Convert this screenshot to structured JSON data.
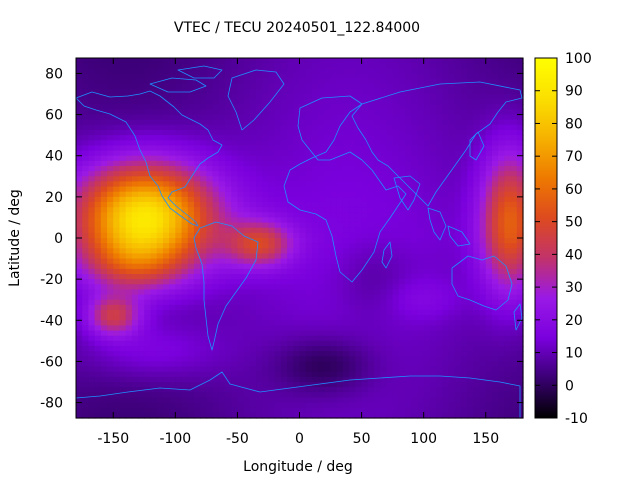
{
  "chart_data": {
    "type": "heatmap",
    "title": "VTEC / TECU 20240501_122.84000",
    "xlabel": "Longitude / deg",
    "ylabel": "Latitude / deg",
    "xlim": [
      -180,
      180
    ],
    "ylim": [
      -87.5,
      87.5
    ],
    "x_ticks": [
      -150,
      -100,
      -50,
      0,
      50,
      100,
      150
    ],
    "y_ticks": [
      -80,
      -60,
      -40,
      -20,
      0,
      20,
      40,
      60,
      80
    ],
    "colorbar": {
      "range": [
        -10,
        100
      ],
      "ticks": [
        -10,
        0,
        10,
        20,
        30,
        40,
        50,
        60,
        70,
        80,
        90,
        100
      ],
      "palette": [
        "#000000",
        "#3a0073",
        "#7a00dd",
        "#9a19e6",
        "#c2336a",
        "#dd4a1f",
        "#ee7a00",
        "#f6b200",
        "#fbe000",
        "#ffff00"
      ]
    },
    "grid": "5 deg lon x 2.5 deg lat, smooth VTEC field",
    "features": [
      {
        "name": "main equatorial anomaly (Pacific, afternoon sector)",
        "lon": -125,
        "lat": 12,
        "peak_tecu": 95,
        "lon_half_width": 55,
        "lat_half_width": 30
      },
      {
        "name": "southern crest",
        "lon": -135,
        "lat": -12,
        "peak_tecu": 40
      },
      {
        "name": "South Atlantic enhancement",
        "lon": -30,
        "lat": -3,
        "peak_tecu": 50
      },
      {
        "name": "West Pacific / Asia evening enhancement",
        "lon": 170,
        "lat": 10,
        "peak_tecu": 65
      },
      {
        "name": "South Pacific secondary maximum",
        "lon": -150,
        "lat": -38,
        "peak_tecu": 50
      },
      {
        "name": "background",
        "tecu_range": [
          5,
          20
        ]
      },
      {
        "name": "low TEC south of Africa",
        "lon": 20,
        "lat": -62,
        "tecu": 2
      }
    ],
    "coastline_color": "#1e90ff"
  }
}
